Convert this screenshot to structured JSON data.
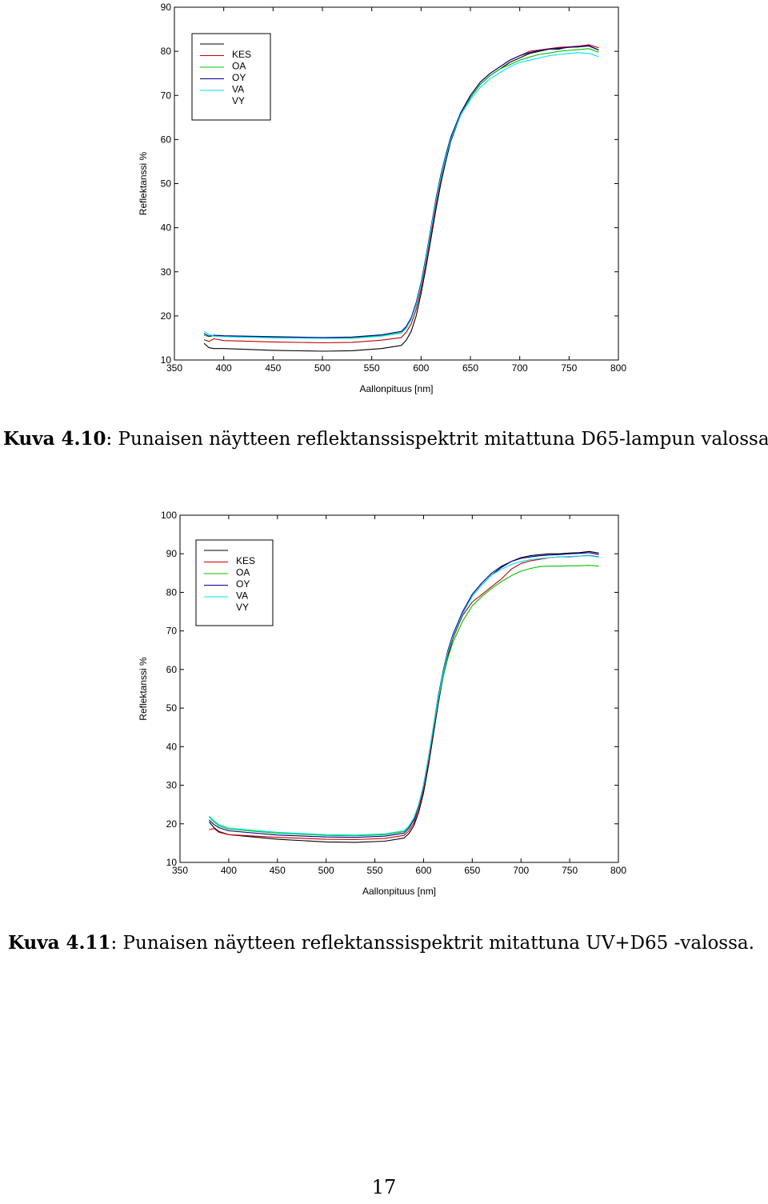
{
  "chart_data": [
    {
      "type": "line",
      "title": "",
      "xlabel": "Aallonpituus [nm]",
      "ylabel": "Reflektanssi %",
      "xlim": [
        350,
        800
      ],
      "ylim": [
        10,
        90
      ],
      "xticks": [
        350,
        400,
        450,
        500,
        550,
        600,
        650,
        700,
        750,
        800
      ],
      "yticks": [
        10,
        20,
        30,
        40,
        50,
        60,
        70,
        80,
        90
      ],
      "grid": false,
      "legend_position": "top-left",
      "series": [
        {
          "name": "KES",
          "color": "#000000",
          "x": [
            380,
            385,
            390,
            400,
            450,
            500,
            530,
            560,
            580,
            585,
            590,
            595,
            600,
            605,
            610,
            615,
            620,
            625,
            630,
            640,
            650,
            660,
            670,
            680,
            690,
            700,
            710,
            720,
            730,
            740,
            750,
            760,
            770,
            780
          ],
          "y": [
            13.8,
            12.8,
            12.6,
            12.6,
            12.2,
            12.0,
            12.1,
            12.6,
            13.3,
            14.5,
            16.5,
            20,
            25,
            31,
            37.5,
            44,
            50,
            55,
            59.5,
            65.5,
            69.5,
            72.5,
            74.5,
            76,
            77.5,
            78.5,
            79.5,
            80,
            80.5,
            80.5,
            81,
            81,
            81.2,
            80.3
          ]
        },
        {
          "name": "OA",
          "color": "#c00000",
          "x": [
            380,
            385,
            390,
            400,
            450,
            500,
            530,
            560,
            580,
            585,
            590,
            595,
            600,
            605,
            610,
            615,
            620,
            625,
            630,
            640,
            650,
            660,
            670,
            680,
            690,
            700,
            710,
            720,
            730,
            740,
            750,
            760,
            770,
            780
          ],
          "y": [
            14.6,
            14.2,
            14.8,
            14.4,
            14.1,
            13.9,
            14.0,
            14.5,
            15.1,
            16.3,
            18.2,
            21.5,
            26,
            32,
            38.5,
            45,
            51,
            56,
            60,
            66,
            70,
            73,
            75,
            76.5,
            78,
            79,
            80,
            80.3,
            80.6,
            80.9,
            81,
            81.2,
            81.5,
            80.8
          ]
        },
        {
          "name": "OY",
          "color": "#00c000",
          "x": [
            380,
            385,
            390,
            400,
            450,
            500,
            530,
            560,
            580,
            585,
            590,
            595,
            600,
            605,
            610,
            615,
            620,
            625,
            630,
            640,
            650,
            660,
            670,
            680,
            690,
            700,
            710,
            720,
            730,
            740,
            750,
            760,
            770,
            780
          ],
          "y": [
            15.6,
            15.3,
            15.5,
            15.4,
            15.2,
            15.0,
            15.1,
            15.5,
            16.2,
            17.3,
            19.3,
            22.5,
            27,
            33,
            39.5,
            46,
            51.5,
            56,
            60,
            65.5,
            69.5,
            72.5,
            74.5,
            76,
            77,
            78,
            78.7,
            79.3,
            79.6,
            80,
            80.2,
            80.4,
            80.6,
            79.8
          ]
        },
        {
          "name": "VA",
          "color": "#000090",
          "x": [
            380,
            385,
            390,
            400,
            450,
            500,
            530,
            560,
            580,
            585,
            590,
            595,
            600,
            605,
            610,
            615,
            620,
            625,
            630,
            640,
            650,
            660,
            670,
            680,
            690,
            700,
            710,
            720,
            730,
            740,
            750,
            760,
            770,
            780
          ],
          "y": [
            16.0,
            15.4,
            15.6,
            15.5,
            15.3,
            15.1,
            15.2,
            15.7,
            16.5,
            17.6,
            19.6,
            23,
            27.5,
            33.5,
            40,
            46.5,
            52,
            56.5,
            60.5,
            66,
            70,
            73,
            75,
            76.5,
            78,
            79,
            79.7,
            80.2,
            80.5,
            80.7,
            80.9,
            81,
            81.3,
            80.3
          ]
        },
        {
          "name": "VY",
          "color": "#00e0ff",
          "x": [
            380,
            385,
            390,
            400,
            450,
            500,
            530,
            560,
            580,
            585,
            590,
            595,
            600,
            605,
            610,
            615,
            620,
            625,
            630,
            640,
            650,
            660,
            670,
            680,
            690,
            700,
            710,
            720,
            730,
            740,
            750,
            760,
            770,
            780
          ],
          "y": [
            16.5,
            15.8,
            15.4,
            15.3,
            15.0,
            14.9,
            14.9,
            15.4,
            16.1,
            17.2,
            19.2,
            22.5,
            27,
            33,
            39.5,
            46,
            51.5,
            56,
            60,
            65.5,
            69,
            71.8,
            73.8,
            75.2,
            76.5,
            77.5,
            78,
            78.5,
            79,
            79.3,
            79.5,
            79.7,
            79.5,
            78.8
          ]
        }
      ]
    },
    {
      "type": "line",
      "title": "",
      "xlabel": "Aallonpituus [nm]",
      "ylabel": "Reflektanssi %",
      "xlim": [
        350,
        800
      ],
      "ylim": [
        10,
        100
      ],
      "xticks": [
        350,
        400,
        450,
        500,
        550,
        600,
        650,
        700,
        750,
        800
      ],
      "yticks": [
        10,
        20,
        30,
        40,
        50,
        60,
        70,
        80,
        90,
        100
      ],
      "grid": false,
      "legend_position": "top-left",
      "series": [
        {
          "name": "KES",
          "color": "#000000",
          "x": [
            380,
            385,
            390,
            400,
            450,
            500,
            530,
            560,
            580,
            585,
            590,
            595,
            600,
            605,
            610,
            615,
            620,
            625,
            630,
            640,
            650,
            660,
            670,
            680,
            690,
            700,
            710,
            720,
            730,
            740,
            750,
            760,
            770,
            780
          ],
          "y": [
            20.5,
            19.0,
            18.0,
            17.2,
            16.0,
            15.3,
            15.2,
            15.5,
            16.3,
            17.5,
            19.5,
            23,
            28,
            35,
            43,
            51,
            58,
            63.5,
            68,
            74.5,
            79,
            82,
            84.5,
            86.5,
            88,
            89,
            89.5,
            89.8,
            90,
            90,
            90.2,
            90.3,
            90.6,
            90.2
          ]
        },
        {
          "name": "OA",
          "color": "#c00000",
          "x": [
            380,
            385,
            390,
            400,
            450,
            500,
            530,
            560,
            580,
            585,
            590,
            595,
            600,
            605,
            610,
            615,
            620,
            625,
            630,
            640,
            650,
            660,
            670,
            680,
            690,
            700,
            710,
            720,
            730,
            740,
            750,
            760,
            770,
            780
          ],
          "y": [
            18.5,
            18.8,
            17.8,
            17.2,
            16.5,
            16.0,
            15.9,
            16.2,
            17.0,
            18.2,
            20.2,
            24,
            29,
            36,
            44,
            52,
            58.5,
            64,
            68,
            74,
            77.5,
            79.5,
            81.5,
            83.5,
            86,
            87.5,
            88.2,
            88.6,
            89,
            89.2,
            89.2,
            89.4,
            89.6,
            89.2
          ]
        },
        {
          "name": "OY",
          "color": "#00c000",
          "x": [
            380,
            385,
            390,
            400,
            450,
            500,
            530,
            560,
            580,
            585,
            590,
            595,
            600,
            605,
            610,
            615,
            620,
            625,
            630,
            640,
            650,
            660,
            670,
            680,
            690,
            700,
            710,
            720,
            730,
            740,
            750,
            760,
            770,
            780
          ],
          "y": [
            21.8,
            20.5,
            19.5,
            18.6,
            17.6,
            17.0,
            16.9,
            17.2,
            18.0,
            19.3,
            21.3,
            25,
            30,
            37,
            44.5,
            52,
            58,
            63,
            67,
            72.5,
            76.5,
            79,
            81,
            82.8,
            84.3,
            85.5,
            86.2,
            86.7,
            86.8,
            86.8,
            86.9,
            86.9,
            87,
            86.8
          ]
        },
        {
          "name": "VA",
          "color": "#000090",
          "x": [
            380,
            385,
            390,
            400,
            450,
            500,
            530,
            560,
            580,
            585,
            590,
            595,
            600,
            605,
            610,
            615,
            620,
            625,
            630,
            640,
            650,
            660,
            670,
            680,
            690,
            700,
            710,
            720,
            730,
            740,
            750,
            760,
            770,
            780
          ],
          "y": [
            21.0,
            19.8,
            19.0,
            18.2,
            17.1,
            16.6,
            16.5,
            16.8,
            17.6,
            18.9,
            21,
            24.8,
            30,
            37,
            45,
            53,
            59.5,
            65,
            69,
            75,
            79.5,
            82.5,
            85,
            86.8,
            88,
            88.8,
            89.2,
            89.5,
            89.7,
            89.8,
            90,
            90.1,
            90.3,
            89.8
          ]
        },
        {
          "name": "VY",
          "color": "#00e0ff",
          "x": [
            380,
            385,
            390,
            400,
            450,
            500,
            530,
            560,
            580,
            585,
            590,
            595,
            600,
            605,
            610,
            615,
            620,
            625,
            630,
            640,
            650,
            660,
            670,
            680,
            690,
            700,
            710,
            720,
            730,
            740,
            750,
            760,
            770,
            780
          ],
          "y": [
            22.0,
            20.8,
            19.8,
            18.9,
            17.8,
            17.2,
            17.1,
            17.4,
            18.2,
            19.5,
            21.5,
            25,
            30,
            37,
            45,
            52.5,
            59,
            64.5,
            68.5,
            74.5,
            79,
            82,
            84.5,
            86,
            87.2,
            88,
            88.5,
            88.8,
            89,
            89.2,
            89.3,
            89.4,
            89.5,
            89.1
          ]
        }
      ]
    }
  ],
  "captions": {
    "fig1_label": "Kuva 4.10",
    "fig1_text": ": Punaisen näytteen reflektanssispektrit mitattuna D65-lampun valossa.",
    "fig2_label": "Kuva 4.11",
    "fig2_text": ": Punaisen näytteen reflektanssispektrit mitattuna UV+D65 -valossa."
  },
  "page_number": "17"
}
